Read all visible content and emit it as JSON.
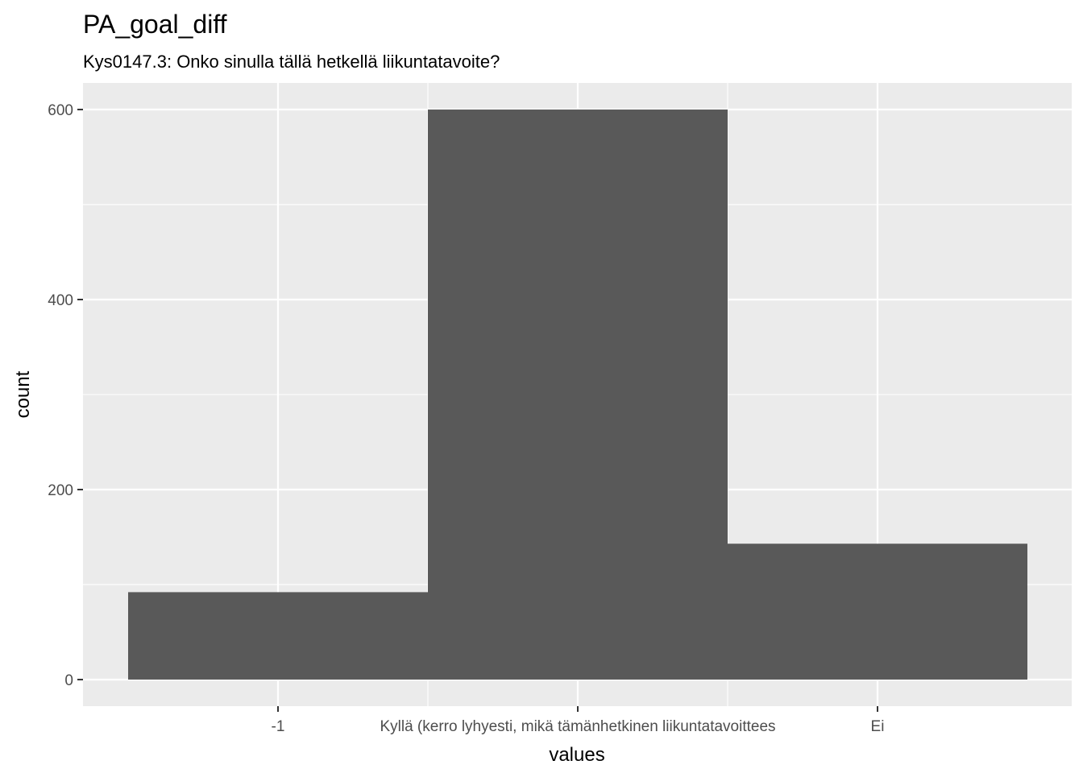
{
  "chart_data": {
    "type": "bar",
    "title": "PA_goal_diff",
    "subtitle": "Kys0147.3: Onko sinulla tällä hetkellä liikuntatavoite?",
    "xlabel": "values",
    "ylabel": "count",
    "categories": [
      "-1",
      "Kyllä (kerro lyhyesti, mikä tämänhetkinen liikuntatavoittees",
      "Ei"
    ],
    "values": [
      92,
      600,
      143
    ],
    "ylim": [
      -28,
      628
    ],
    "y_ticks": [
      0,
      200,
      400,
      600
    ],
    "grid": true,
    "legend": "none",
    "colors": {
      "panel": "#ebebeb",
      "grid": "#ffffff",
      "bar": "#595959",
      "tick_text": "#4d4d4d"
    }
  }
}
